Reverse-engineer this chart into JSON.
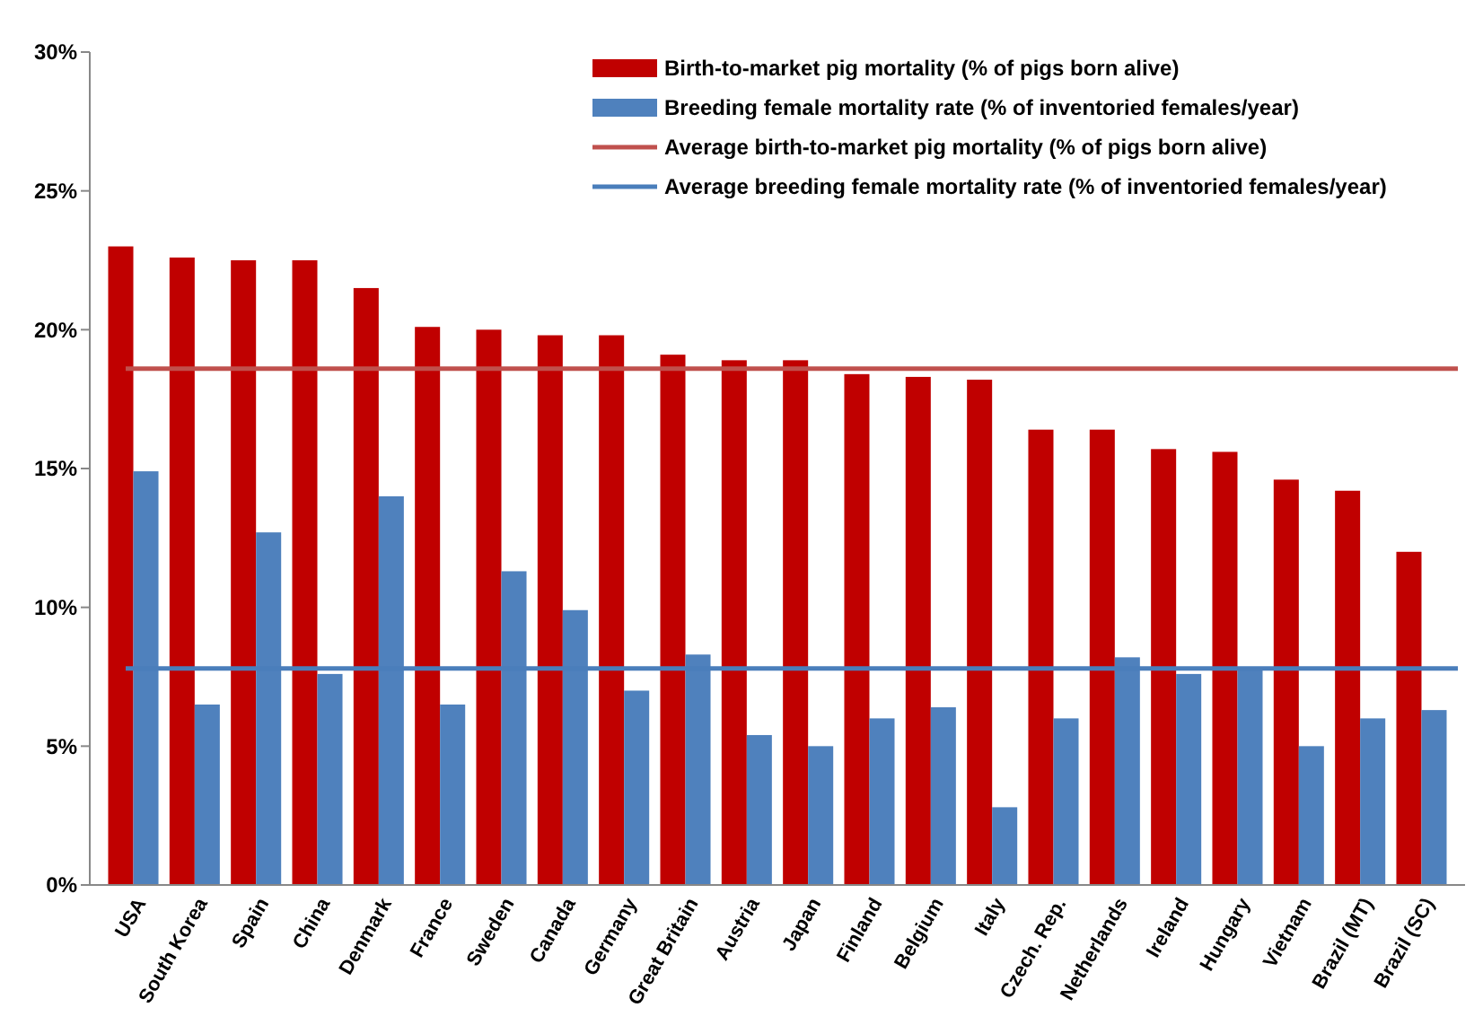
{
  "chart_data": {
    "type": "bar",
    "categories": [
      "USA",
      "South Korea",
      "Spain",
      "China",
      "Denmark",
      "France",
      "Sweden",
      "Canada",
      "Germany",
      "Great Britain",
      "Austria",
      "Japan",
      "Finland",
      "Belgium",
      "Italy",
      "Czech. Rep.",
      "Netherlands",
      "Ireland",
      "Hungary",
      "Vietnam",
      "Brazil (MT)",
      "Brazil (SC)"
    ],
    "series": [
      {
        "name": "Birth-to-market pig mortality (% of pigs born alive)",
        "color": "#c00000",
        "values": [
          23.0,
          22.6,
          22.5,
          22.5,
          21.5,
          20.1,
          20.0,
          19.8,
          19.8,
          19.1,
          18.9,
          18.9,
          18.4,
          18.3,
          18.2,
          16.4,
          16.4,
          15.7,
          15.6,
          14.6,
          14.2,
          12.0
        ]
      },
      {
        "name": "Breeding female mortality rate (% of inventoried females/year)",
        "color": "#4f81bd",
        "values": [
          14.9,
          6.5,
          12.7,
          7.6,
          14.0,
          6.5,
          11.3,
          9.9,
          7.0,
          8.3,
          5.4,
          5.0,
          6.0,
          6.4,
          2.8,
          6.0,
          8.2,
          7.6,
          7.8,
          5.0,
          6.0,
          6.3
        ]
      }
    ],
    "ylim": [
      0,
      30
    ],
    "yticks": [
      {
        "value": 0,
        "label": "0%"
      },
      {
        "value": 5,
        "label": "5%"
      },
      {
        "value": 10,
        "label": "10%"
      },
      {
        "value": 15,
        "label": "15%"
      },
      {
        "value": 20,
        "label": "20%"
      },
      {
        "value": 25,
        "label": "25%"
      },
      {
        "value": 30,
        "label": "30%"
      }
    ],
    "ref_lines": [
      {
        "axis": "y",
        "value": 18.6,
        "label": "Average birth-to-market pig mortality (% of pigs born alive)",
        "color": "#c0504d"
      },
      {
        "axis": "y",
        "value": 7.8,
        "label": "Average breeding female mortality rate (% of inventoried females/year)",
        "color": "#4a7ebb"
      }
    ],
    "legend": "top right",
    "grid": false
  }
}
